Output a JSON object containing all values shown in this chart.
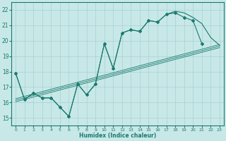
{
  "title": "",
  "xlabel": "Humidex (Indice chaleur)",
  "ylabel": "",
  "xlim": [
    -0.5,
    23.5
  ],
  "ylim": [
    14.5,
    22.5
  ],
  "xticks": [
    0,
    1,
    2,
    3,
    4,
    5,
    6,
    7,
    8,
    9,
    10,
    11,
    12,
    13,
    14,
    15,
    16,
    17,
    18,
    19,
    20,
    21,
    22,
    23
  ],
  "yticks": [
    15,
    16,
    17,
    18,
    19,
    20,
    21,
    22
  ],
  "bg_color": "#c8e8e8",
  "line_color": "#1a7a6e",
  "grid_color": "#a8d0d0",
  "figsize": [
    3.2,
    2.0
  ],
  "dpi": 100,
  "line_with_markers_x": [
    0,
    1,
    2,
    3,
    4,
    5,
    6,
    7,
    8,
    9,
    10,
    11,
    12,
    13,
    14,
    15,
    16,
    17,
    18,
    19,
    20,
    21
  ],
  "line_with_markers_y": [
    17.9,
    16.2,
    16.6,
    16.3,
    16.3,
    15.7,
    15.1,
    17.2,
    16.5,
    17.2,
    19.8,
    18.2,
    20.5,
    20.7,
    20.6,
    21.3,
    21.2,
    21.7,
    21.8,
    21.5,
    21.3,
    19.8
  ],
  "line2_x": [
    0,
    1,
    2,
    3,
    4,
    5,
    6,
    7,
    8,
    9,
    10,
    11,
    12,
    13,
    14,
    15,
    16,
    17,
    18,
    19,
    20,
    21,
    22,
    23
  ],
  "line2_y": [
    17.9,
    16.2,
    16.6,
    16.3,
    16.3,
    15.7,
    15.1,
    17.2,
    16.5,
    17.2,
    19.8,
    18.2,
    20.5,
    20.7,
    20.6,
    21.3,
    21.2,
    21.7,
    21.9,
    21.8,
    21.5,
    21.1,
    20.2,
    19.7
  ],
  "straight_lines": [
    {
      "x": [
        0,
        23
      ],
      "y": [
        16.05,
        19.55
      ]
    },
    {
      "x": [
        0,
        23
      ],
      "y": [
        16.15,
        19.65
      ]
    },
    {
      "x": [
        0,
        23
      ],
      "y": [
        16.25,
        19.75
      ]
    }
  ]
}
